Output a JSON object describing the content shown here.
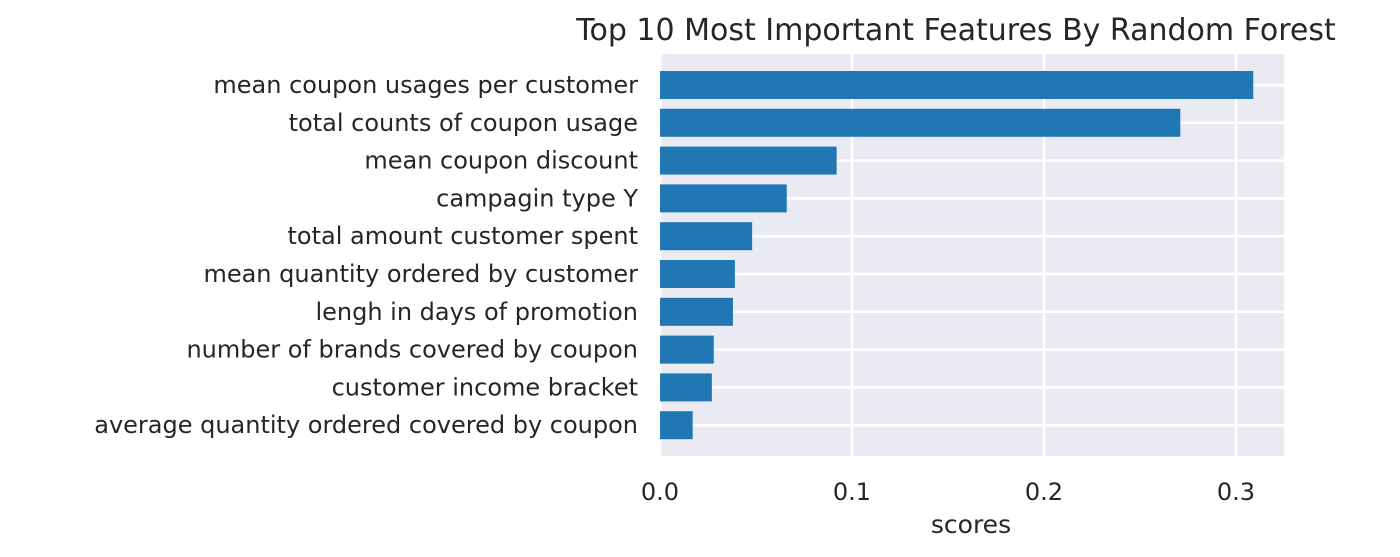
{
  "chart_data": {
    "type": "bar",
    "orientation": "horizontal",
    "title": "Top 10 Most Important Features By Random Forest",
    "xlabel": "scores",
    "ylabel": "",
    "xlim": [
      0,
      0.325
    ],
    "xticks": [
      "0.0",
      "0.1",
      "0.2",
      "0.3"
    ],
    "xtick_values": [
      0,
      0.1,
      0.2,
      0.3
    ],
    "grid": true,
    "colors": {
      "bar": "#2177b4",
      "plot_background": "#eaeaf2",
      "grid": "#ffffff",
      "text": "#262626"
    },
    "categories": [
      "mean coupon usages per customer",
      "total counts of coupon usage",
      "mean coupon discount",
      "campagin type Y",
      "total amount customer spent",
      "mean quantity ordered by customer",
      "lengh in days of promotion",
      "number of brands covered by coupon",
      "customer income bracket",
      "average quantity ordered covered by coupon"
    ],
    "values": [
      0.309,
      0.271,
      0.092,
      0.066,
      0.048,
      0.039,
      0.038,
      0.028,
      0.027,
      0.017
    ]
  }
}
